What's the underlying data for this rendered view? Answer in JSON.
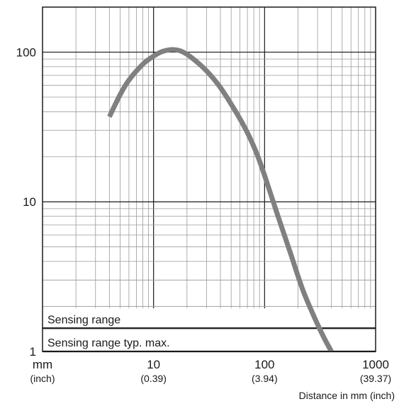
{
  "chart_data": {
    "type": "line",
    "title": "",
    "xlabel": "Distance in mm (inch)",
    "ylabel": "",
    "x_scale": "log",
    "y_scale": "log",
    "xlim": [
      1,
      1000
    ],
    "ylim": [
      1,
      200
    ],
    "grid": true,
    "x_unit_label": "mm",
    "x_unit_sublabel": "(inch)",
    "x_ticks": [
      {
        "value": 10,
        "label": "10",
        "sublabel": "(0.39)"
      },
      {
        "value": 100,
        "label": "100",
        "sublabel": "(3.94)"
      },
      {
        "value": 1000,
        "label": "1000",
        "sublabel": "(39.37)"
      }
    ],
    "y_ticks": [
      {
        "value": 1,
        "label": "1"
      },
      {
        "value": 10,
        "label": "10"
      },
      {
        "value": 100,
        "label": "100"
      }
    ],
    "series": [
      {
        "color": "#808080",
        "points": [
          {
            "x": 4,
            "y": 37
          },
          {
            "x": 5,
            "y": 52
          },
          {
            "x": 6,
            "y": 65
          },
          {
            "x": 8,
            "y": 83
          },
          {
            "x": 10,
            "y": 94
          },
          {
            "x": 12,
            "y": 101
          },
          {
            "x": 15,
            "y": 104
          },
          {
            "x": 18,
            "y": 101
          },
          {
            "x": 22,
            "y": 92
          },
          {
            "x": 30,
            "y": 75
          },
          {
            "x": 40,
            "y": 58
          },
          {
            "x": 55,
            "y": 40
          },
          {
            "x": 70,
            "y": 29
          },
          {
            "x": 85,
            "y": 21
          },
          {
            "x": 100,
            "y": 15
          },
          {
            "x": 130,
            "y": 8.3
          },
          {
            "x": 170,
            "y": 4.6
          },
          {
            "x": 220,
            "y": 2.6
          },
          {
            "x": 280,
            "y": 1.7
          },
          {
            "x": 340,
            "y": 1.25
          },
          {
            "x": 400,
            "y": 1.0
          }
        ]
      }
    ],
    "bands": [
      {
        "label": "Sensing range",
        "y": 1.43
      },
      {
        "label": "Sensing range typ. max.",
        "y": 1.0
      }
    ]
  }
}
